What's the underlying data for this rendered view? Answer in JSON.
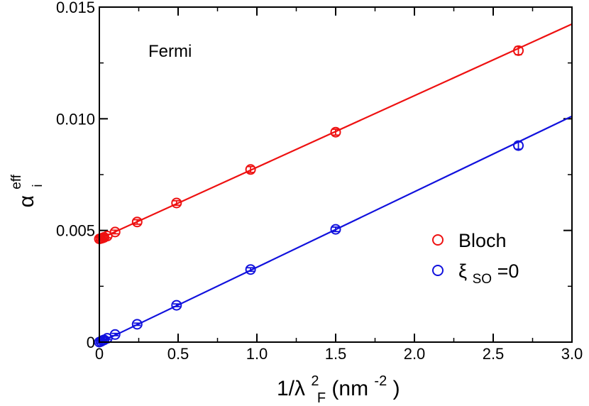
{
  "chart_data": {
    "type": "scatter",
    "annotation": "Fermi",
    "xlabel": {
      "main": "1/λ",
      "sup": "2",
      "sub": "F",
      "unit_open": " (nm",
      "unit_sup": "-2",
      "unit_close": ")"
    },
    "ylabel": {
      "main": "α",
      "sup": "eff",
      "sub": "i"
    },
    "xlim": [
      0,
      3.0
    ],
    "ylim": [
      0,
      0.015
    ],
    "x_ticks": [
      {
        "value": 0,
        "label": "0"
      },
      {
        "value": 0.5,
        "label": "0.5"
      },
      {
        "value": 1.0,
        "label": "1.0"
      },
      {
        "value": 1.5,
        "label": "1.5"
      },
      {
        "value": 2.0,
        "label": "2.0"
      },
      {
        "value": 2.5,
        "label": "2.5"
      },
      {
        "value": 3.0,
        "label": "3.0"
      }
    ],
    "y_ticks": [
      {
        "value": 0,
        "label": "0"
      },
      {
        "value": 0.005,
        "label": "0.005"
      },
      {
        "value": 0.01,
        "label": "0.010"
      },
      {
        "value": 0.015,
        "label": "0.015"
      }
    ],
    "x_minor_step": 0.25,
    "y_minor_step": 0.0025,
    "grid": false,
    "legend_position": "right",
    "series": [
      {
        "name": "Bloch",
        "color": "#ee1111",
        "marker": "open-circle",
        "x": [
          0.0,
          0.01,
          0.02,
          0.03,
          0.05,
          0.1,
          0.24,
          0.49,
          0.96,
          1.5,
          2.66
        ],
        "y": [
          0.00462,
          0.00464,
          0.00466,
          0.00469,
          0.00475,
          0.00493,
          0.00538,
          0.00623,
          0.00773,
          0.0094,
          0.01305
        ],
        "yerr": [
          8e-05,
          8e-05,
          8e-05,
          8e-05,
          8e-05,
          8e-05,
          0.0001,
          0.0001,
          0.00013,
          0.00013,
          0.00018
        ],
        "fit": {
          "intercept": 0.00462,
          "slope": 0.003207
        }
      },
      {
        "legend_main": "ξ",
        "legend_sub": "SO",
        "legend_suffix": "=0",
        "color": "#1111dd",
        "marker": "open-circle",
        "x": [
          0.0,
          0.01,
          0.02,
          0.03,
          0.05,
          0.1,
          0.24,
          0.49,
          0.96,
          1.5,
          2.66
        ],
        "y": [
          0.0,
          3e-05,
          7e-05,
          0.0001,
          0.00017,
          0.00034,
          0.0008,
          0.00165,
          0.00325,
          0.00505,
          0.0088
        ],
        "yerr": [
          5e-05,
          5e-05,
          5e-05,
          5e-05,
          5e-05,
          5e-05,
          5e-05,
          6e-05,
          8e-05,
          0.0001,
          0.00016
        ],
        "fit": {
          "intercept": -3e-05,
          "slope": 0.003381
        }
      }
    ]
  }
}
